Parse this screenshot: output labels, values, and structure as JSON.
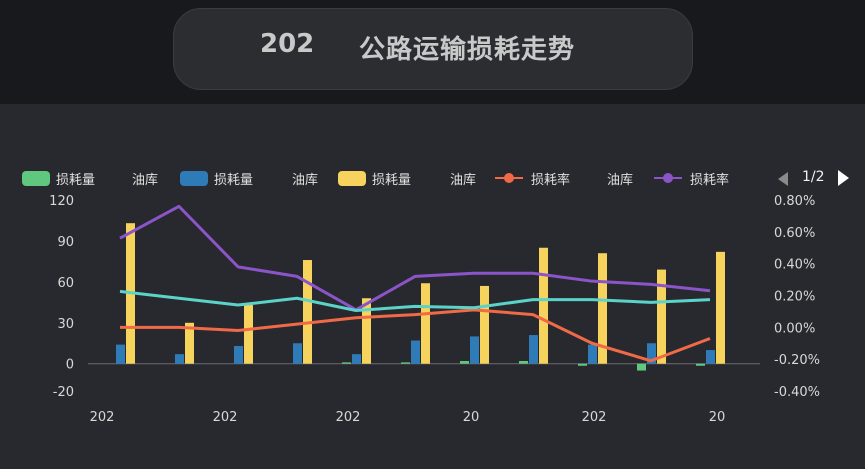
{
  "header": {
    "year": "202",
    "title": "公路运输损耗走势"
  },
  "legend": {
    "items": [
      {
        "label": "损耗量",
        "label_suffix": "油库",
        "color": "#5fc77e",
        "kind": "bar"
      },
      {
        "label": "损耗量",
        "label_suffix": "油库",
        "color": "#2f7bb8",
        "kind": "bar"
      },
      {
        "label": "损耗量",
        "label_suffix": "油库",
        "color": "#f5d35c",
        "kind": "bar"
      },
      {
        "label": "损耗率",
        "label_suffix": "油库",
        "color": "#f06a47",
        "kind": "line"
      },
      {
        "label": "损耗率",
        "color": "#8b55c9",
        "kind": "line"
      }
    ],
    "page": "1/2"
  },
  "chart_data": {
    "type": "bar",
    "categories": [
      "",
      "",
      "",
      "",
      "",
      "",
      "",
      "",
      "",
      "",
      ""
    ],
    "x_tick_labels": [
      "202",
      "202",
      "202",
      "20",
      "202",
      "20"
    ],
    "y_left": {
      "min": -20,
      "max": 120,
      "ticks": [
        "120",
        "90",
        "60",
        "30",
        "0",
        "-20"
      ]
    },
    "y_right": {
      "min": -0.4,
      "max": 0.8,
      "ticks": [
        "0.80%",
        "0.60%",
        "0.40%",
        "0.20%",
        "0.00%",
        "-0.20%",
        "-0.40%"
      ]
    },
    "grid": false,
    "legend_position": "top",
    "series": [
      {
        "type": "bar",
        "axis": "left",
        "color": "#5fc77e",
        "values": [
          0,
          0,
          0,
          0,
          1,
          1,
          2,
          2,
          -1.5,
          -5,
          -1.5
        ]
      },
      {
        "type": "bar",
        "axis": "left",
        "color": "#2f7bb8",
        "values": [
          14,
          7,
          13,
          15,
          7,
          17,
          20,
          21,
          14,
          15,
          10
        ]
      },
      {
        "type": "bar",
        "axis": "left",
        "color": "#f5d35c",
        "values": [
          103,
          30,
          43,
          76,
          48,
          59,
          57,
          85,
          81,
          69,
          82
        ]
      },
      {
        "type": "line",
        "axis": "right",
        "color": "#f06a47",
        "values": [
          0.0,
          0.0,
          -0.02,
          0.02,
          0.06,
          0.08,
          0.11,
          0.08,
          -0.1,
          -0.21,
          -0.07
        ]
      },
      {
        "type": "line",
        "axis": "right",
        "color": "#8b55c9",
        "values": [
          0.56,
          0.76,
          0.38,
          0.32,
          0.11,
          0.32,
          0.34,
          0.34,
          0.29,
          0.27,
          0.23
        ]
      },
      {
        "type": "line",
        "axis": "left",
        "color": "#5bd3c9",
        "values": [
          53,
          48,
          43,
          48,
          39,
          42,
          41,
          47,
          47,
          45,
          47
        ]
      }
    ]
  }
}
